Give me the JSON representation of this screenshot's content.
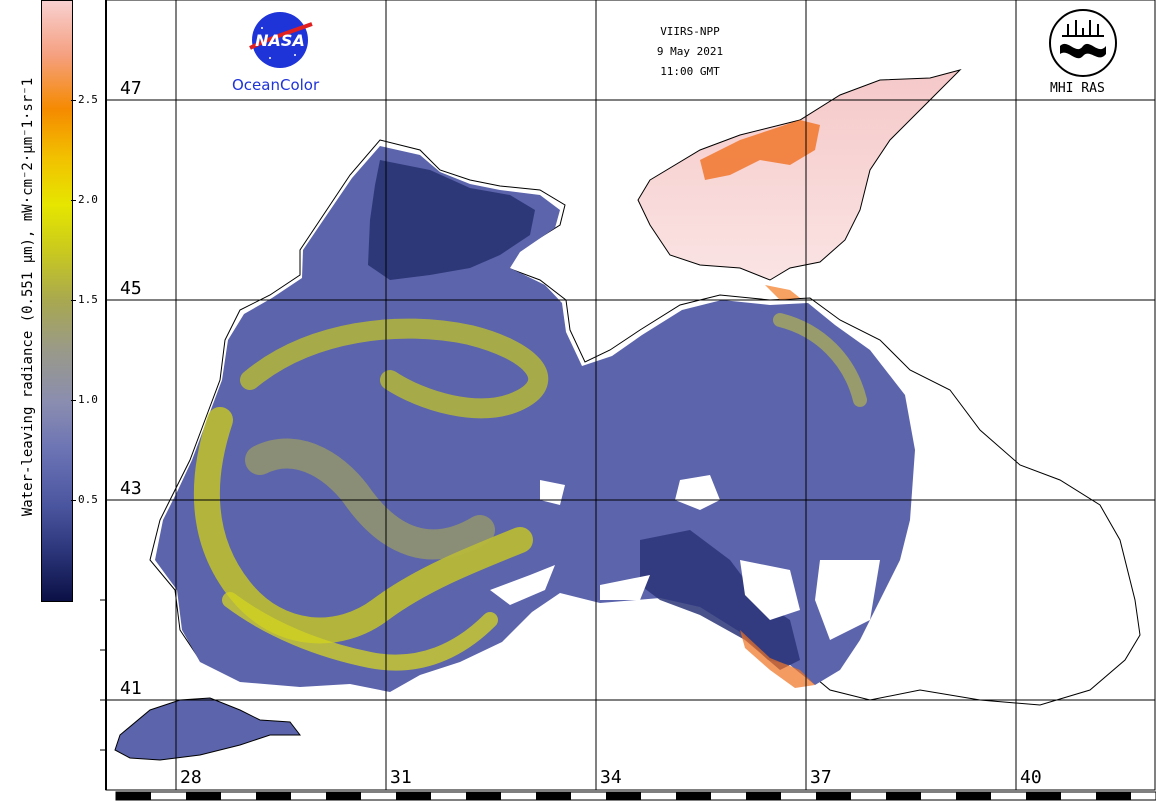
{
  "colorbar": {
    "label": "Water-leaving radiance (0.551 µm), mW·cm⁻2·µm⁻1·sr⁻1",
    "ticks": [
      "0.5",
      "1.0",
      "1.5",
      "2.0",
      "2.5"
    ],
    "range": [
      0,
      3
    ],
    "colors": [
      "#0b1045",
      "#4b56a0",
      "#8a8db0",
      "#a8a850",
      "#e6e600",
      "#f58a00",
      "#f8d0d0"
    ]
  },
  "header": {
    "satellite": "VIIRS-NPP",
    "date": "9 May 2021",
    "time": "11:00 GMT"
  },
  "logos": {
    "nasa_text": "NASA",
    "oceancolor": "OceanColor",
    "mhi": "MHI RAS"
  },
  "grid": {
    "latitudes": [
      "47",
      "45",
      "43",
      "41"
    ],
    "longitudes": [
      "28",
      "31",
      "34",
      "37",
      "40"
    ]
  },
  "colors": {
    "sea_blue": "#5c64ac",
    "deep_blue": "#25306e",
    "bloom_yellow": "#c8c820",
    "turbid_pink": "#f5c8c8",
    "coast_orange": "#f07020",
    "nasa_blue": "#1e33d8"
  }
}
